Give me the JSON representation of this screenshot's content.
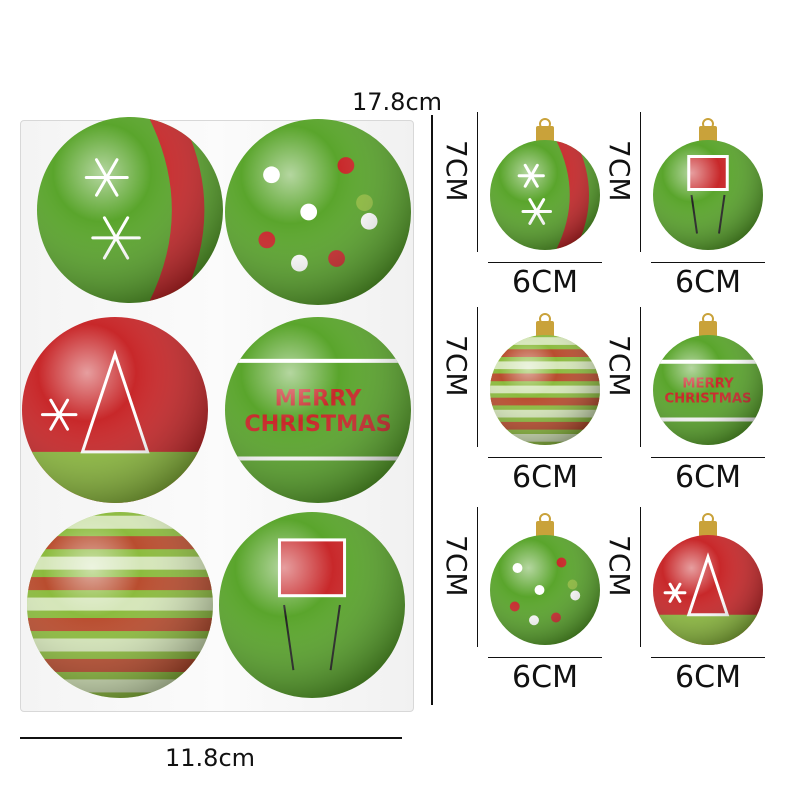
{
  "package": {
    "width_label": "11.8cm",
    "height_label": "17.8cm"
  },
  "ornaments": [
    {
      "height_label": "7CM",
      "width_label": "6CM",
      "base": "#5aa52c",
      "accent": "#c8282a",
      "pattern": "stripe-snowflake"
    },
    {
      "height_label": "7CM",
      "width_label": "6CM",
      "base": "#5aa52c",
      "accent": "#c8282a",
      "pattern": "elf"
    },
    {
      "height_label": "7CM",
      "width_label": "6CM",
      "base": "#8dbb3e",
      "accent": "#c8282a",
      "pattern": "stripes"
    },
    {
      "height_label": "7CM",
      "width_label": "6CM",
      "base": "#5aa52c",
      "accent": "#c8282a",
      "pattern": "merry-christmas"
    },
    {
      "height_label": "7CM",
      "width_label": "6CM",
      "base": "#5aa52c",
      "accent": "#c8282a",
      "pattern": "dots"
    },
    {
      "height_label": "7CM",
      "width_label": "6CM",
      "base": "#c8282a",
      "accent": "#8dbb3e",
      "pattern": "tree"
    }
  ],
  "ornament_text": "MERRY CHRISTMAS",
  "colors": {
    "green": "#5aa52c",
    "red": "#c8282a",
    "gold": "#c9a23a",
    "glitter": "#8dbb3e"
  }
}
